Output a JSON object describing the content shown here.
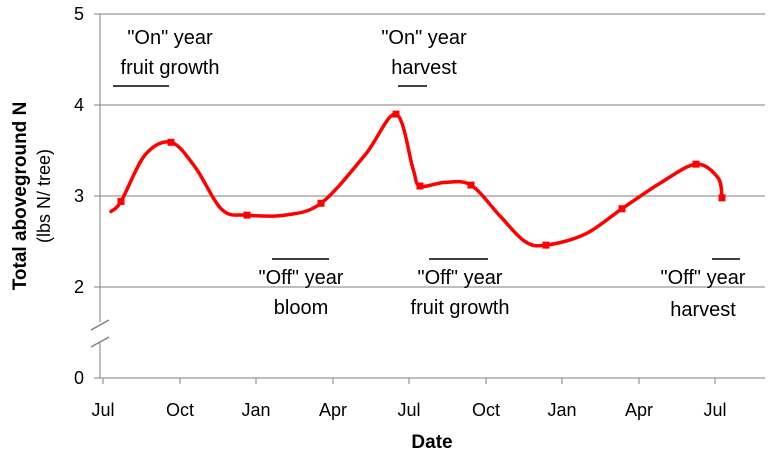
{
  "chart_data": {
    "type": "line",
    "x_axis": {
      "label": "Date",
      "tick_labels": [
        "Jul",
        "Oct",
        "Jan",
        "Apr",
        "Jul",
        "Oct",
        "Jan",
        "Apr",
        "Jul"
      ]
    },
    "y_axis": {
      "label": "Total aboveground N",
      "sublabel": "(lbs N/ tree)",
      "ticks": [
        0,
        2,
        3,
        4,
        5
      ],
      "ylim": [
        0,
        5
      ],
      "axis_break_between": [
        0,
        2
      ]
    },
    "grid": "horizontal",
    "series": [
      {
        "color": "#ff0000",
        "marker": "square",
        "points": [
          {
            "x": "Aug",
            "y": 2.94
          },
          {
            "x": "late Sep",
            "y": 3.59
          },
          {
            "x": "mid Jan",
            "y": 2.79
          },
          {
            "x": "late Mar",
            "y": 2.92
          },
          {
            "x": "late Jun",
            "y": 3.9
          },
          {
            "x": "late Jul",
            "y": 3.11
          },
          {
            "x": "mid Sep",
            "y": 3.12
          },
          {
            "x": "mid Dec",
            "y": 2.46
          },
          {
            "x": "mid Mar",
            "y": 2.86
          },
          {
            "x": "mid Jun",
            "y": 3.35
          },
          {
            "x": "early Jul",
            "y": 2.98
          }
        ]
      }
    ],
    "annotations": [
      {
        "lines": [
          "\"On\" year",
          "fruit growth"
        ]
      },
      {
        "lines": [
          "\"On\" year",
          "harvest"
        ]
      },
      {
        "lines": [
          "\"Off\" year",
          "bloom"
        ]
      },
      {
        "lines": [
          "\"Off\" year",
          "fruit growth"
        ]
      },
      {
        "lines": [
          "\"Off\" year",
          "harvest"
        ]
      }
    ]
  }
}
